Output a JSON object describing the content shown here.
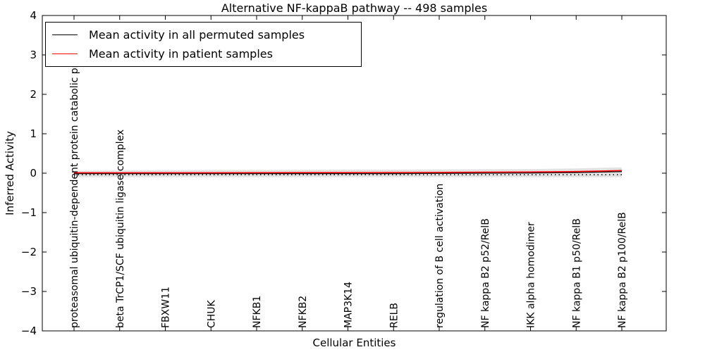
{
  "title": "Alternative NF-kappaB pathway -- 498 samples",
  "axes": {
    "ylabel": "Inferred Activity",
    "xlabel": "Cellular Entities",
    "yticks": [
      4,
      3,
      2,
      1,
      0,
      -1,
      -2,
      -3,
      -4
    ],
    "ylim": [
      -4,
      4
    ]
  },
  "legend": {
    "position": "upper left",
    "items": [
      {
        "label": "Mean activity in all permuted samples",
        "color": "#000000"
      },
      {
        "label": "Mean activity in patient samples",
        "color": "#ff0000"
      }
    ]
  },
  "chart_data": {
    "type": "line",
    "title": "Alternative NF-kappaB pathway -- 498 samples",
    "xlabel": "Cellular Entities",
    "ylabel": "Inferred Activity",
    "ylim": [
      -4,
      4
    ],
    "grid": false,
    "legend_position": "upper left",
    "categories": [
      "proteasomal ubiquitin-dependent protein catabolic pr",
      "beta TrCP1/SCF ubiquitin ligase complex",
      "FBXW11",
      "CHUK",
      "NFKB1",
      "NFKB2",
      "MAP3K14",
      "RELB",
      "regulation of B cell activation",
      "NF kappa B2 p52/RelB",
      "IKK alpha homodimer",
      "NF kappa B1 p50/RelB",
      "NF kappa B2 p100/RelB"
    ],
    "series": [
      {
        "name": "Mean activity in all permuted samples",
        "color": "#000000",
        "style": "solid",
        "values": [
          -0.01,
          -0.01,
          -0.01,
          -0.01,
          -0.01,
          -0.01,
          -0.01,
          -0.01,
          -0.005,
          0.0,
          0.005,
          0.015,
          0.04
        ]
      },
      {
        "name": "Mean activity in patient samples",
        "color": "#ff0000",
        "style": "solid",
        "values": [
          0.01,
          0.01,
          0.01,
          0.01,
          0.012,
          0.015,
          0.015,
          0.018,
          0.02,
          0.025,
          0.03,
          0.042,
          0.065
        ]
      }
    ],
    "band": {
      "name": "permuted samples spread",
      "color": "#e2e2e2",
      "upper": [
        0.06,
        0.07,
        0.075,
        0.08,
        0.08,
        0.085,
        0.09,
        0.09,
        0.095,
        0.1,
        0.105,
        0.12,
        0.15
      ],
      "lower": [
        -0.1,
        -0.1,
        -0.1,
        -0.1,
        -0.1,
        -0.1,
        -0.1,
        -0.1,
        -0.1,
        -0.1,
        -0.1,
        -0.1,
        -0.1
      ]
    },
    "baseline": {
      "style": "dotted",
      "color": "#000000",
      "value": -0.04
    }
  }
}
